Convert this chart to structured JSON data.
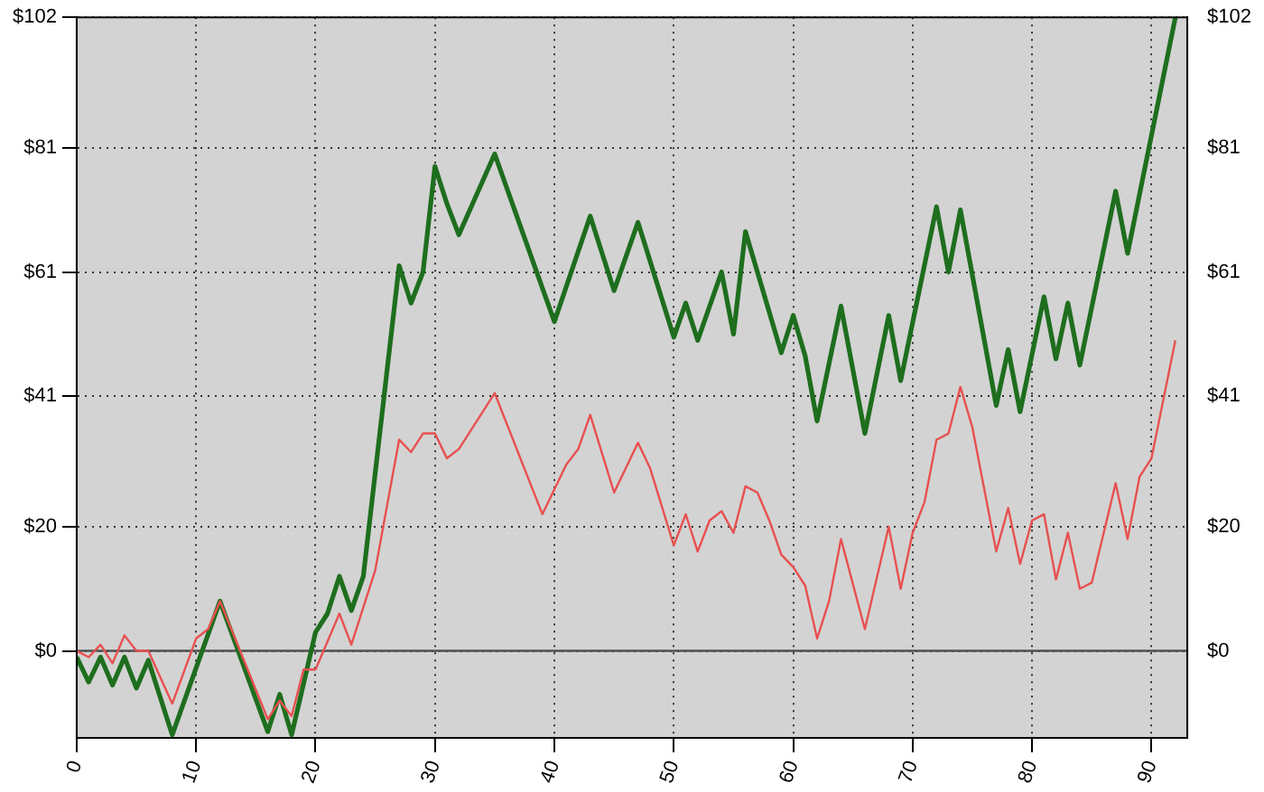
{
  "chart_data": {
    "type": "line",
    "series": [
      {
        "color": "#1e6e1e",
        "x": [
          0,
          1,
          2,
          3,
          4,
          5,
          6,
          8,
          12,
          16,
          17,
          18,
          20,
          21,
          22,
          23,
          24,
          27,
          28,
          29,
          30,
          31,
          32,
          35,
          40,
          43,
          45,
          47,
          50,
          51,
          52,
          54,
          55,
          56,
          59,
          60,
          61,
          62,
          64,
          66,
          68,
          69,
          72,
          73,
          74,
          77,
          78,
          79,
          81,
          82,
          83,
          84,
          87,
          88,
          92
        ],
        "values": [
          -1,
          -5,
          -1,
          -5.5,
          -1,
          -6,
          -1.5,
          -13.5,
          8,
          -13,
          -7,
          -13.5,
          3,
          6,
          12,
          6.5,
          12,
          62,
          56,
          61,
          78,
          72,
          67,
          80,
          53,
          70,
          58,
          69,
          50.5,
          56,
          50,
          61,
          51,
          67.5,
          48,
          54,
          47.5,
          37,
          55.5,
          35,
          54,
          43.5,
          71.5,
          61,
          71,
          39.5,
          48.5,
          38.5,
          57,
          47,
          56,
          46,
          74,
          64,
          102
        ]
      },
      {
        "color": "#e85050",
        "x": [
          0,
          1,
          2,
          3,
          4,
          5,
          6,
          8,
          10,
          11,
          12,
          16,
          17,
          18,
          19,
          20,
          22,
          23,
          25,
          27,
          28,
          29,
          30,
          31,
          32,
          35,
          39,
          41,
          42,
          43,
          45,
          47,
          48,
          50,
          51,
          52,
          53,
          54,
          55,
          56,
          57,
          58,
          59,
          60,
          61,
          62,
          63,
          64,
          66,
          68,
          69,
          70,
          71,
          72,
          73,
          74,
          75,
          77,
          78,
          79,
          80,
          81,
          82,
          83,
          84,
          85,
          87,
          88,
          89,
          90,
          92
        ],
        "values": [
          0,
          -1,
          1,
          -2,
          2.5,
          0,
          0,
          -8.5,
          2,
          3.5,
          8,
          -11,
          -8,
          -10.5,
          -3,
          -3,
          6,
          1,
          13,
          34,
          32,
          35,
          35,
          31,
          32.5,
          41.5,
          22,
          30,
          32.5,
          38,
          25.5,
          33.5,
          29.5,
          17,
          22,
          16,
          21,
          22.5,
          19,
          26.5,
          25.5,
          21,
          15.5,
          13.5,
          10.5,
          2,
          8,
          18,
          3.5,
          20,
          10,
          19,
          24,
          34,
          35,
          42.5,
          36,
          16,
          23,
          14,
          21,
          22,
          11.5,
          19,
          10,
          11,
          27,
          18,
          28,
          31,
          50
        ]
      }
    ],
    "xlim": [
      0,
      93
    ],
    "xticks": [
      0,
      10,
      20,
      30,
      40,
      50,
      60,
      70,
      80,
      90
    ],
    "ylim": [
      -14,
      102
    ],
    "yticks": [
      {
        "value": 0,
        "label": "$0"
      },
      {
        "value": 20,
        "label": "$20"
      },
      {
        "value": 41,
        "label": "$41"
      },
      {
        "value": 61,
        "label": "$61"
      },
      {
        "value": 81,
        "label": "$81"
      },
      {
        "value": 102,
        "label": "$102"
      }
    ],
    "y2lim": [
      -14,
      102
    ],
    "y2ticks": [
      {
        "value": 0,
        "label": "$0"
      },
      {
        "value": 20,
        "label": "$20"
      },
      {
        "value": 41,
        "label": "$41"
      },
      {
        "value": 61,
        "label": "$61"
      },
      {
        "value": 81,
        "label": "$81"
      },
      {
        "value": 102,
        "label": "$102"
      }
    ],
    "ref_lines": [
      {
        "axis": "y",
        "value": 0,
        "color": "#505050"
      }
    ],
    "grid": true,
    "legend": false
  }
}
